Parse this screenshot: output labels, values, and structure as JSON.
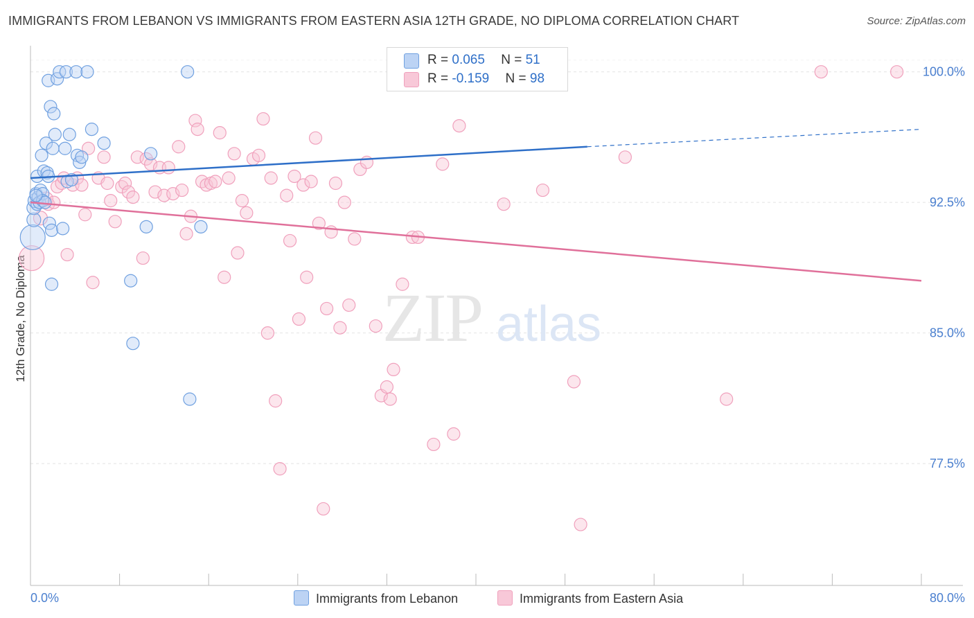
{
  "title": "IMMIGRANTS FROM LEBANON VS IMMIGRANTS FROM EASTERN ASIA 12TH GRADE, NO DIPLOMA CORRELATION CHART",
  "source": "Source: ZipAtlas.com",
  "watermark": {
    "zip": "ZIP",
    "atlas": "atlas"
  },
  "legend": {
    "rows": [
      {
        "r_label": "R = ",
        "r_value": "0.065",
        "n_label": "N = ",
        "n_value": "51"
      },
      {
        "r_label": "R = ",
        "r_value": "-0.159",
        "n_label": "N = ",
        "n_value": "98"
      }
    ]
  },
  "chart_data": {
    "type": "scatter",
    "title": "IMMIGRANTS FROM LEBANON VS IMMIGRANTS FROM EASTERN ASIA 12TH GRADE, NO DIPLOMA CORRELATION CHART",
    "xlabel": "",
    "ylabel": "12th Grade, No Diploma",
    "xlim": [
      0,
      80
    ],
    "ylim": [
      70.5,
      101.5
    ],
    "x_tick_labels": [
      "0.0%",
      "80.0%"
    ],
    "y_ticks": [
      77.5,
      85.0,
      92.5,
      100.0
    ],
    "y_tick_labels": [
      "77.5%",
      "85.0%",
      "92.5%",
      "100.0%"
    ],
    "grid": true,
    "legend_position": "top-center",
    "colors": {
      "lebanon": "#6fa0e0",
      "eastern_asia": "#f0a0bc",
      "lebanon_line": "#2e6fc8",
      "eastern_asia_line": "#e0709a",
      "tick_label": "#4a7fcf"
    },
    "series": [
      {
        "name": "Immigrants from Lebanon",
        "r": 0.065,
        "n": 51,
        "trend": {
          "x": [
            0,
            50
          ],
          "y": [
            93.9,
            95.7
          ],
          "dashed_to": [
            80,
            96.7
          ]
        },
        "points": [
          [
            0.2,
            90.5,
            18
          ],
          [
            0.3,
            91.5,
            10
          ],
          [
            0.3,
            92.2,
            10
          ],
          [
            0.4,
            92.6,
            10
          ],
          [
            0.5,
            93.0,
            9
          ],
          [
            0.6,
            92.4,
            9
          ],
          [
            0.6,
            94.0,
            9
          ],
          [
            0.7,
            92.8,
            9
          ],
          [
            0.8,
            92.5,
            9
          ],
          [
            0.9,
            93.2,
            9
          ],
          [
            1.0,
            95.2,
            9
          ],
          [
            1.1,
            93.0,
            9
          ],
          [
            1.1,
            92.6,
            9
          ],
          [
            1.2,
            94.3,
            9
          ],
          [
            1.3,
            92.5,
            9
          ],
          [
            1.4,
            95.9,
            9
          ],
          [
            1.5,
            94.2,
            9
          ],
          [
            1.6,
            94.0,
            9
          ],
          [
            1.6,
            99.5,
            9
          ],
          [
            1.7,
            91.3,
            9
          ],
          [
            1.8,
            98.0,
            9
          ],
          [
            1.9,
            90.9,
            9
          ],
          [
            1.9,
            87.8,
            9
          ],
          [
            2.0,
            95.6,
            9
          ],
          [
            2.1,
            97.6,
            9
          ],
          [
            2.2,
            96.4,
            9
          ],
          [
            2.4,
            99.6,
            9
          ],
          [
            2.6,
            100.0,
            9
          ],
          [
            2.9,
            91.0,
            9
          ],
          [
            3.1,
            95.6,
            9
          ],
          [
            3.2,
            100.0,
            9
          ],
          [
            3.3,
            93.7,
            9
          ],
          [
            3.5,
            96.4,
            9
          ],
          [
            3.7,
            93.8,
            9
          ],
          [
            4.1,
            100.0,
            9
          ],
          [
            4.2,
            95.2,
            9
          ],
          [
            4.4,
            94.8,
            9
          ],
          [
            4.6,
            95.1,
            9
          ],
          [
            5.1,
            100.0,
            9
          ],
          [
            5.5,
            96.7,
            9
          ],
          [
            6.6,
            95.9,
            9
          ],
          [
            9.0,
            88.0,
            9
          ],
          [
            9.2,
            84.4,
            9
          ],
          [
            10.4,
            91.1,
            9
          ],
          [
            10.8,
            95.3,
            9
          ],
          [
            14.1,
            100.0,
            9
          ],
          [
            14.3,
            81.2,
            9
          ],
          [
            15.3,
            91.1,
            9
          ],
          [
            42.2,
            100.0,
            9
          ],
          [
            44.2,
            100.0,
            9
          ],
          [
            0.5,
            92.9,
            9
          ]
        ]
      },
      {
        "name": "Immigrants from Eastern Asia",
        "r": -0.159,
        "n": 98,
        "trend": {
          "x": [
            0,
            80
          ],
          "y": [
            92.5,
            88.0
          ]
        },
        "points": [
          [
            0.1,
            89.3,
            18
          ],
          [
            0.9,
            91.6,
            10
          ],
          [
            1.4,
            92.7,
            10
          ],
          [
            1.6,
            92.4,
            9
          ],
          [
            2.1,
            92.5,
            9
          ],
          [
            2.4,
            93.4,
            9
          ],
          [
            2.8,
            93.6,
            9
          ],
          [
            3.0,
            93.9,
            9
          ],
          [
            3.3,
            89.5,
            9
          ],
          [
            3.8,
            93.5,
            9
          ],
          [
            4.2,
            93.9,
            9
          ],
          [
            4.6,
            93.5,
            9
          ],
          [
            4.9,
            91.8,
            9
          ],
          [
            5.2,
            95.6,
            9
          ],
          [
            5.6,
            87.9,
            9
          ],
          [
            6.1,
            93.9,
            9
          ],
          [
            6.6,
            95.1,
            9
          ],
          [
            6.9,
            93.6,
            9
          ],
          [
            7.2,
            92.6,
            9
          ],
          [
            7.6,
            91.4,
            9
          ],
          [
            8.2,
            93.4,
            9
          ],
          [
            8.5,
            93.6,
            9
          ],
          [
            8.8,
            93.1,
            9
          ],
          [
            9.2,
            92.8,
            9
          ],
          [
            9.6,
            95.1,
            9
          ],
          [
            10.1,
            89.3,
            9
          ],
          [
            10.4,
            95.0,
            9
          ],
          [
            10.8,
            94.7,
            9
          ],
          [
            11.2,
            93.1,
            9
          ],
          [
            11.6,
            94.5,
            9
          ],
          [
            12.0,
            92.9,
            9
          ],
          [
            12.4,
            94.5,
            9
          ],
          [
            12.8,
            93.0,
            9
          ],
          [
            13.3,
            95.7,
            9
          ],
          [
            13.6,
            93.2,
            9
          ],
          [
            14.0,
            90.7,
            9
          ],
          [
            14.4,
            91.7,
            9
          ],
          [
            14.8,
            97.2,
            9
          ],
          [
            15.0,
            96.7,
            9
          ],
          [
            15.4,
            93.7,
            9
          ],
          [
            15.8,
            93.5,
            9
          ],
          [
            16.2,
            93.6,
            9
          ],
          [
            16.6,
            93.7,
            9
          ],
          [
            17.0,
            96.5,
            9
          ],
          [
            17.4,
            88.2,
            9
          ],
          [
            17.8,
            93.9,
            9
          ],
          [
            18.3,
            95.3,
            9
          ],
          [
            18.6,
            89.6,
            9
          ],
          [
            19.0,
            92.6,
            9
          ],
          [
            19.4,
            91.9,
            9
          ],
          [
            20.0,
            95.0,
            9
          ],
          [
            20.5,
            95.2,
            9
          ],
          [
            20.9,
            97.3,
            9
          ],
          [
            21.3,
            85.0,
            9
          ],
          [
            21.6,
            93.9,
            9
          ],
          [
            22.0,
            81.1,
            9
          ],
          [
            22.4,
            77.2,
            9
          ],
          [
            23.0,
            92.9,
            9
          ],
          [
            23.3,
            90.3,
            9
          ],
          [
            23.7,
            94.0,
            9
          ],
          [
            24.1,
            85.8,
            9
          ],
          [
            24.5,
            93.5,
            9
          ],
          [
            24.8,
            88.2,
            9
          ],
          [
            25.2,
            93.7,
            9
          ],
          [
            25.6,
            96.2,
            9
          ],
          [
            25.9,
            91.3,
            9
          ],
          [
            26.3,
            74.9,
            9
          ],
          [
            26.6,
            86.4,
            9
          ],
          [
            27.0,
            90.8,
            9
          ],
          [
            27.4,
            93.6,
            9
          ],
          [
            27.8,
            85.3,
            9
          ],
          [
            28.2,
            92.5,
            9
          ],
          [
            28.6,
            86.6,
            9
          ],
          [
            29.1,
            90.4,
            9
          ],
          [
            29.6,
            94.4,
            9
          ],
          [
            30.2,
            94.8,
            9
          ],
          [
            31.0,
            85.4,
            9
          ],
          [
            31.5,
            81.4,
            9
          ],
          [
            32.0,
            81.9,
            9
          ],
          [
            32.3,
            81.2,
            9
          ],
          [
            32.6,
            82.9,
            9
          ],
          [
            33.4,
            87.8,
            9
          ],
          [
            34.3,
            90.5,
            9
          ],
          [
            34.8,
            90.5,
            9
          ],
          [
            36.2,
            78.6,
            9
          ],
          [
            37.0,
            94.7,
            9
          ],
          [
            38.0,
            79.2,
            9
          ],
          [
            38.5,
            96.9,
            9
          ],
          [
            39.0,
            100.0,
            9
          ],
          [
            42.5,
            92.4,
            9
          ],
          [
            46.0,
            93.2,
            9
          ],
          [
            48.8,
            82.2,
            9
          ],
          [
            49.4,
            74.0,
            9
          ],
          [
            53.4,
            95.1,
            9
          ],
          [
            62.5,
            81.2,
            9
          ],
          [
            71.0,
            100.0,
            9
          ],
          [
            77.8,
            100.0,
            9
          ],
          [
            40.0,
            100.0,
            9
          ]
        ]
      }
    ]
  },
  "bottom_legend": [
    "Immigrants from Lebanon",
    "Immigrants from Eastern Asia"
  ]
}
